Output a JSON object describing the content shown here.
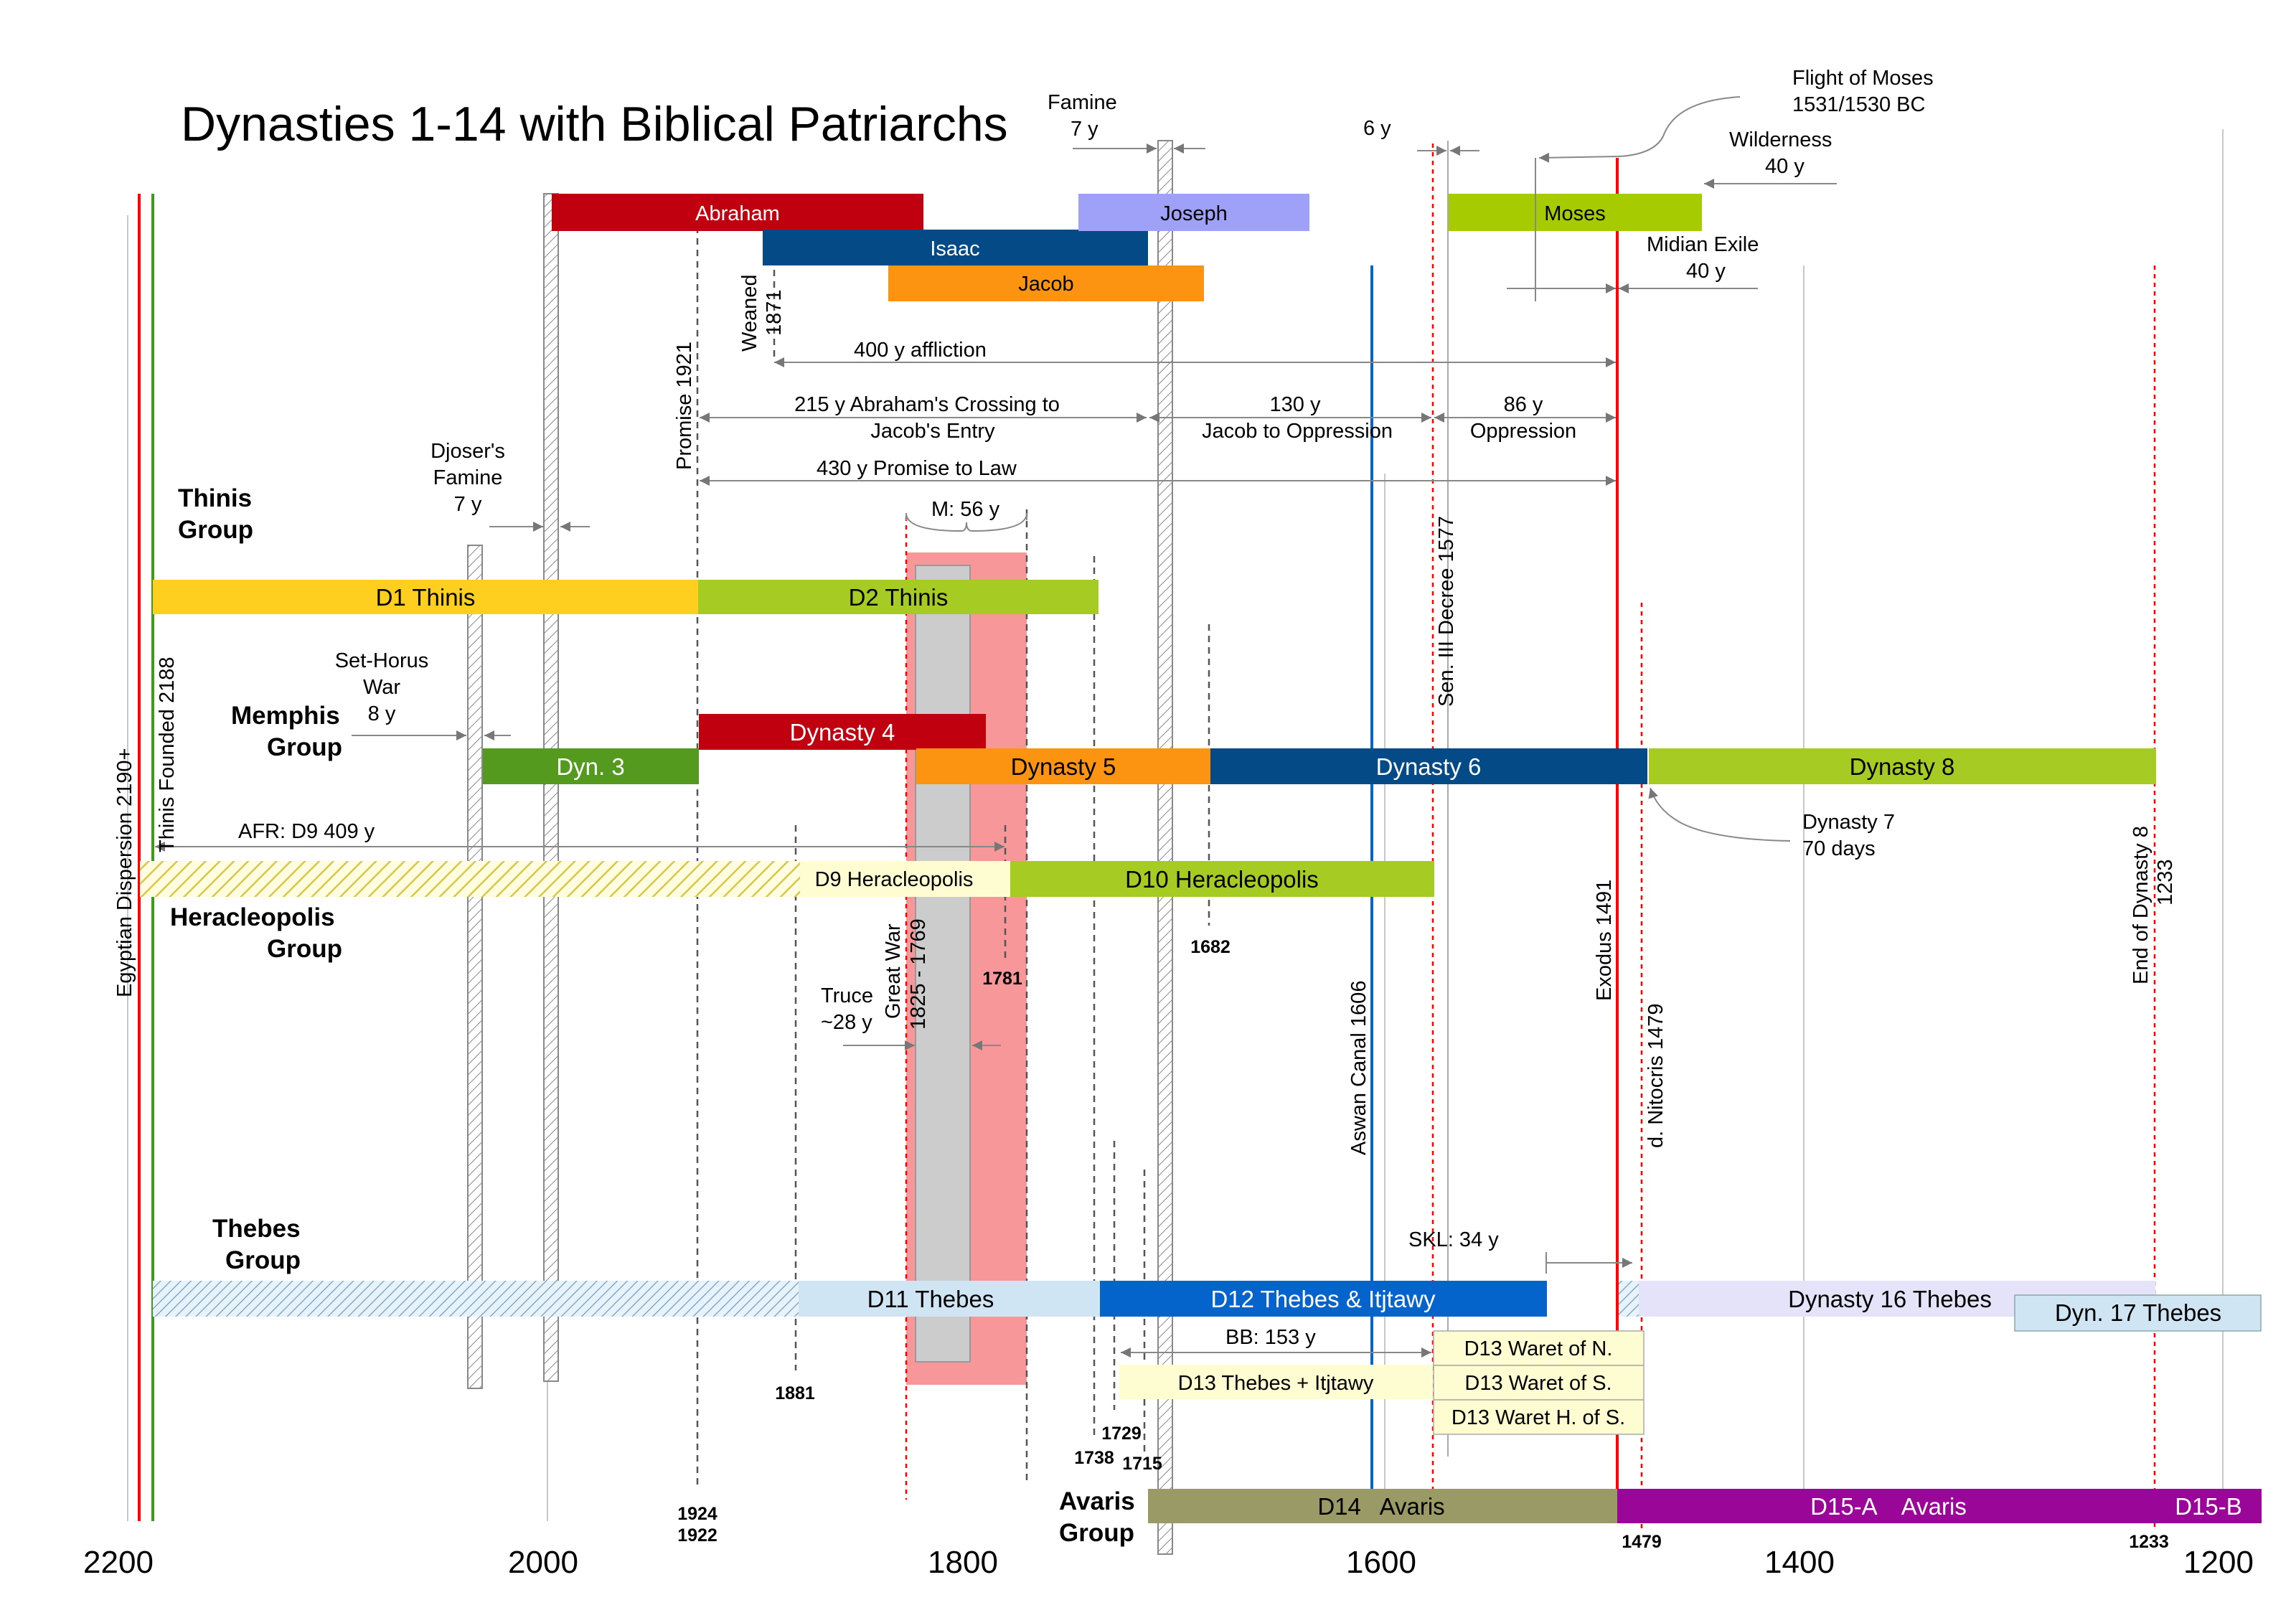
{
  "title": "Dynasties 1-14 with Biblical Patriarchs",
  "axis": {
    "ticks": [
      "2200",
      "2000",
      "1800",
      "1600",
      "1400",
      "1200"
    ]
  },
  "groups": {
    "thinis": [
      "Thinis",
      "Group"
    ],
    "memphis": [
      "Memphis",
      "Group"
    ],
    "heracleopolis": [
      "Heracleopolis",
      "Group"
    ],
    "thebes": [
      "Thebes",
      "Group"
    ],
    "avaris": [
      "Avaris",
      "Group"
    ]
  },
  "patriarchs": {
    "abraham": "Abraham",
    "isaac": "Isaac",
    "jacob": "Jacob",
    "joseph": "Joseph",
    "moses": "Moses"
  },
  "dynasties": {
    "d1": "D1 Thinis",
    "d2": "D2 Thinis",
    "d3": "Dyn. 3",
    "d4": "Dynasty 4",
    "d5": "Dynasty 5",
    "d6": "Dynasty 6",
    "d8": "Dynasty 8",
    "d9": "D9 Heracleopolis",
    "d10": "D10 Heracleopolis",
    "d11": "D11 Thebes",
    "d12": "D12 Thebes & Itjtawy",
    "d13a": "D13 Thebes + Itjtawy",
    "d13b": "D13 Waret of N.",
    "d13c": "D13 Waret of S.",
    "d13d": "D13 Waret H. of S.",
    "d14": "D14   Avaris",
    "d15a": "D15-A    Avaris",
    "d15b": "D15-B",
    "d16": "Dynasty 16 Thebes",
    "d17": "Dyn. 17 Thebes"
  },
  "spans": {
    "famine": [
      "Famine",
      "7 y"
    ],
    "six_y": "6 y",
    "flight": [
      "Flight of Moses",
      "1531/1530 BC"
    ],
    "wilderness": [
      "Wilderness",
      "40 y"
    ],
    "midian": [
      "Midian Exile",
      "40 y"
    ],
    "affliction": "400 y affliction",
    "crossing": [
      "215 y Abraham's Crossing to",
      "Jacob's Entry"
    ],
    "jacob_opp": [
      "130 y",
      "Jacob to Oppression"
    ],
    "oppression": [
      "86 y",
      "Oppression"
    ],
    "promise_law": "430 y Promise to Law",
    "djoser": [
      "Djoser's",
      "Famine",
      "7 y"
    ],
    "m56": "M: 56 y",
    "set_horus": [
      "Set-Horus",
      "War",
      "8 y"
    ],
    "afr": "AFR: D9 409 y",
    "truce": [
      "Truce",
      "~28 y"
    ],
    "dyn7": [
      "Dynasty 7",
      "70 days"
    ],
    "skl": "SKL: 34 y",
    "bb": "BB: 153 y"
  },
  "vertical_labels": {
    "weaned": [
      "Weaned",
      "1871"
    ],
    "promise": "Promise 1921",
    "senusret": "Sen. III Decree 1577",
    "thinis_founded": "Thinis Founded 2188",
    "dispersion": "Egyptian Dispersion 2190+",
    "great_war": [
      "Great War",
      "1825 - 1769"
    ],
    "aswan": "Aswan Canal 1606",
    "exodus": "Exodus 1491",
    "nitocris": "d. Nitocris 1479",
    "end_d8": [
      "End of Dynasty 8",
      "1233"
    ]
  },
  "year_marks": {
    "y1682": "1682",
    "y1781": "1781",
    "y1881": "1881",
    "y1924": "1924",
    "y1922": "1922",
    "y1729": "1729",
    "y1738": "1738",
    "y1715": "1715",
    "y1479": "1479",
    "y1233": "1233"
  },
  "colors": {
    "abraham": "#c1000f",
    "isaac": "#034a86",
    "jacob": "#fc9412",
    "joseph": "#9fa1f8",
    "moses": "#a6cb00",
    "d1": "#ffcf20",
    "d2": "#a6cc23",
    "d3": "#549a1e",
    "d4": "#c1000f",
    "d5": "#fc9412",
    "d6": "#034a86",
    "d8": "#a6cc23",
    "d10": "#a6cc23",
    "d11": "#d0e5f4",
    "d12": "#0564cc",
    "d13": "#fefcd1",
    "d14": "#9a9a66",
    "d15": "#9a0697",
    "d16": "#e5e3fa",
    "d17": "#d0e5f4",
    "red_zone": "#f89799",
    "grey_zone": "#cccccc"
  }
}
